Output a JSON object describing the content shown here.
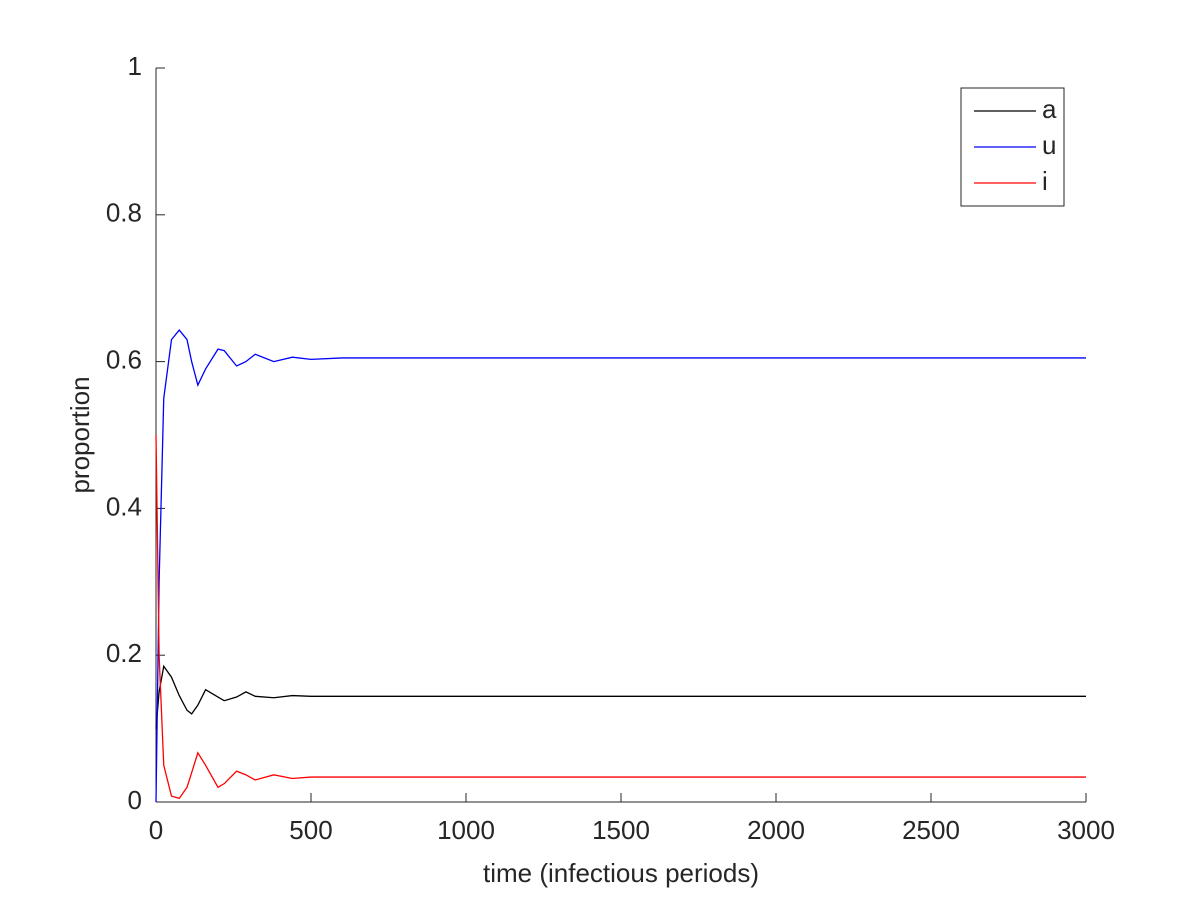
{
  "chart_data": {
    "type": "line",
    "xlabel": "time (infectious periods)",
    "ylabel": "proportion",
    "x": [
      0,
      10,
      25,
      50,
      75,
      100,
      115,
      135,
      160,
      200,
      220,
      260,
      290,
      320,
      380,
      440,
      500,
      600,
      1000,
      2000,
      3000
    ],
    "series": [
      {
        "name": "a",
        "color": "#000000",
        "values": [
          0.1,
          0.15,
          0.185,
          0.17,
          0.145,
          0.125,
          0.12,
          0.132,
          0.153,
          0.143,
          0.138,
          0.143,
          0.15,
          0.144,
          0.142,
          0.145,
          0.144,
          0.144,
          0.144,
          0.144,
          0.144
        ]
      },
      {
        "name": "u",
        "color": "#0000ff",
        "values": [
          0,
          0.3,
          0.55,
          0.63,
          0.643,
          0.63,
          0.6,
          0.568,
          0.59,
          0.617,
          0.615,
          0.594,
          0.6,
          0.61,
          0.6,
          0.606,
          0.603,
          0.605,
          0.605,
          0.605,
          0.605
        ]
      },
      {
        "name": "i",
        "color": "#ff0000",
        "values": [
          0.5,
          0.2,
          0.05,
          0.008,
          0.005,
          0.02,
          0.04,
          0.067,
          0.05,
          0.02,
          0.025,
          0.042,
          0.037,
          0.03,
          0.037,
          0.032,
          0.034,
          0.034,
          0.034,
          0.034,
          0.034
        ]
      }
    ],
    "xlim": [
      0,
      3000
    ],
    "xticks": [
      0,
      500,
      1000,
      1500,
      2000,
      2500,
      3000
    ],
    "ylim": [
      0,
      1
    ],
    "yticks": [
      0,
      0.2,
      0.4,
      0.6,
      0.8,
      1
    ],
    "grid": false,
    "legend": "top-right"
  }
}
